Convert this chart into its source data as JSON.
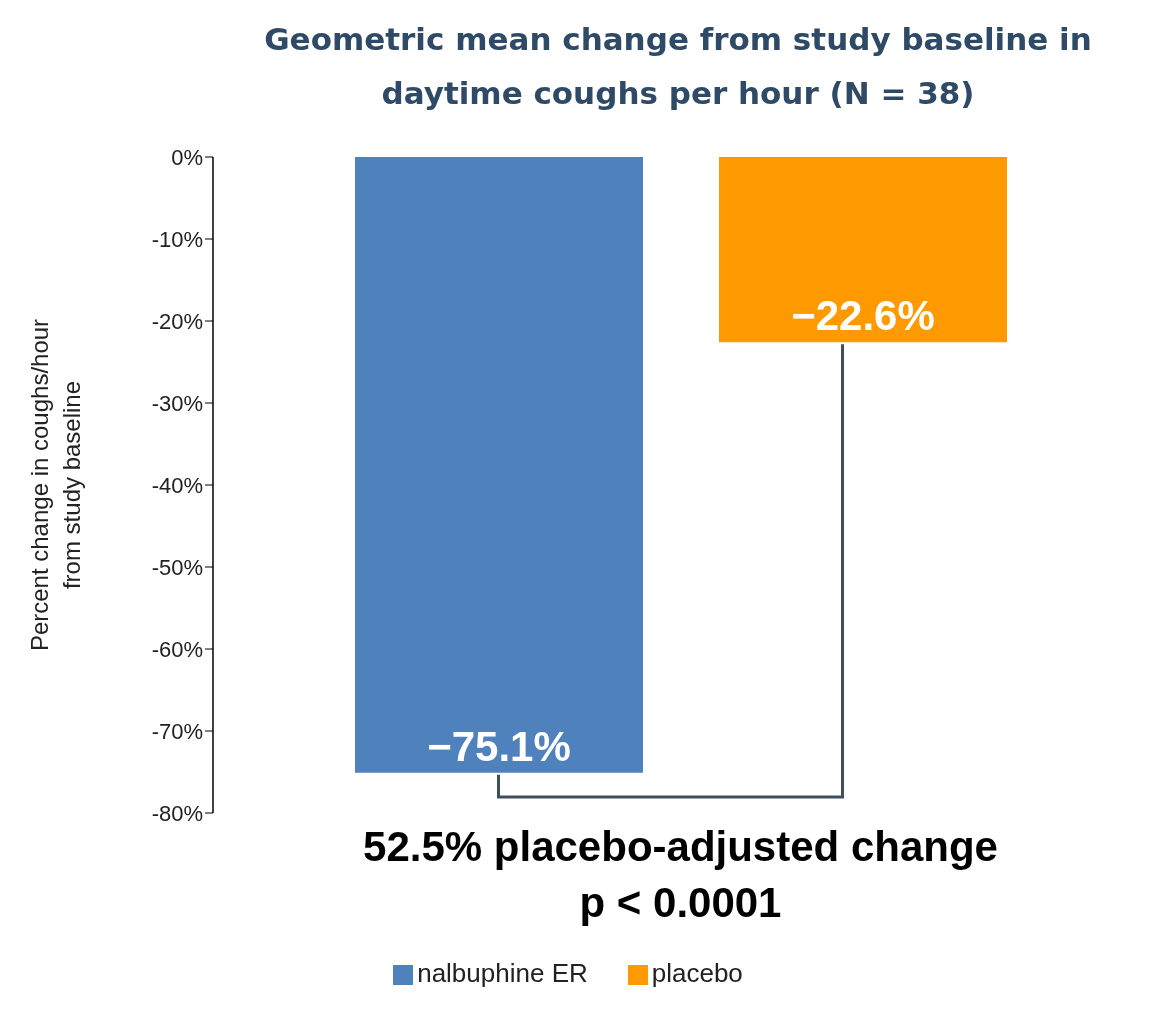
{
  "chart_data": {
    "type": "bar",
    "title": "Geometric mean change from study baseline in daytime coughs per hour (N = 38)",
    "ylabel": "Percent change in coughs/hour from study baseline",
    "categories": [
      null
    ],
    "series": [
      {
        "name": "nalbuphine ER",
        "color": "#4f81bd",
        "values": [
          -75.1
        ],
        "value_labels": [
          "−75.1%"
        ]
      },
      {
        "name": "placebo",
        "color": "#ff9900",
        "values": [
          -22.6
        ],
        "value_labels": [
          "−22.6%"
        ]
      }
    ],
    "ylim": [
      -80,
      0
    ],
    "yticks": [
      {
        "value": -80,
        "label": "-80%"
      },
      {
        "value": -70,
        "label": "-70%"
      },
      {
        "value": -60,
        "label": "-60%"
      },
      {
        "value": -50,
        "label": "-50%"
      },
      {
        "value": -40,
        "label": "-40%"
      },
      {
        "value": -30,
        "label": "-30%"
      },
      {
        "value": -20,
        "label": "-20%"
      },
      {
        "value": -10,
        "label": "-10%"
      },
      {
        "value": 0,
        "label": "0%"
      }
    ],
    "annotations": [
      "52.5% placebo-adjusted change",
      "p < 0.0001"
    ],
    "grid": false,
    "legend": "bottom"
  }
}
